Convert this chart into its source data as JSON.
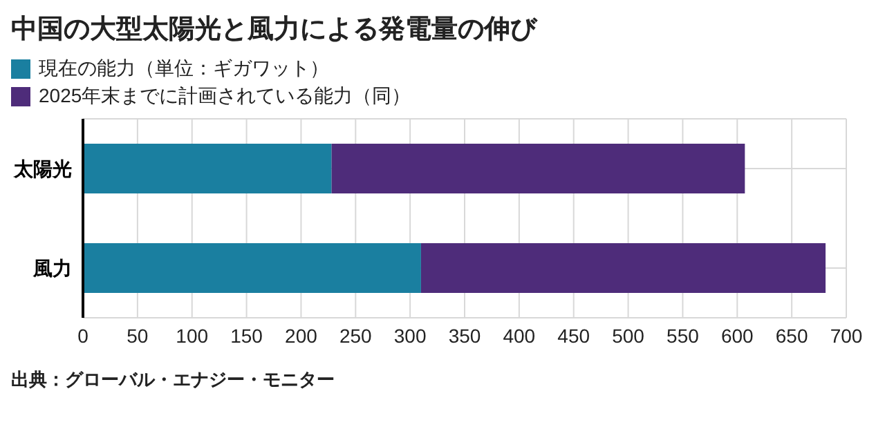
{
  "chart_data": {
    "type": "bar",
    "orientation": "horizontal",
    "stacked": true,
    "title": "中国の大型太陽光と風力による発電量の伸び",
    "categories": [
      "太陽光",
      "風力"
    ],
    "series": [
      {
        "name": "現在の能力（単位：ギガワット）",
        "color": "#1a7fa0",
        "values": [
          228,
          310
        ]
      },
      {
        "name": "2025年末までに計画されている能力（同）",
        "color": "#4e2c7a",
        "values": [
          379,
          371
        ]
      }
    ],
    "xlim": [
      0,
      700
    ],
    "xticks": [
      0,
      50,
      100,
      150,
      200,
      250,
      300,
      350,
      400,
      450,
      500,
      550,
      600,
      650,
      700
    ],
    "grid": true,
    "legend": "top left",
    "annotations": [
      "出典：グローバル・エナジー・モニター"
    ]
  }
}
